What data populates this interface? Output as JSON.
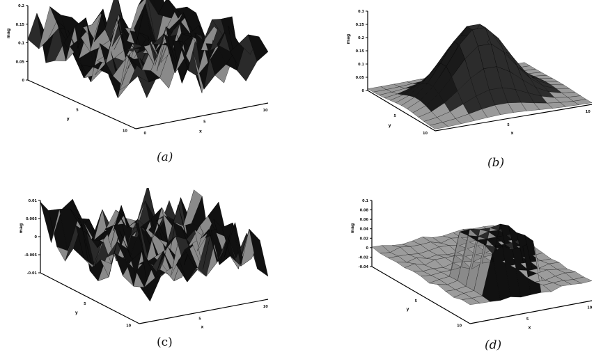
{
  "chart_data": [
    {
      "type": "surface",
      "caption": "(a)",
      "z_label": "mag",
      "x_label": "x",
      "y_label": "y",
      "z_ticks": [
        "0.2",
        "0.15",
        "0.1",
        "0.05",
        "0"
      ],
      "x_ticks": [
        "0",
        "5",
        "10"
      ],
      "y_ticks": [
        "5",
        "10"
      ],
      "zlim": [
        0,
        0.2
      ],
      "shape": "noisy-surface"
    },
    {
      "type": "surface",
      "caption": "(b)",
      "z_label": "mag",
      "x_label": "x",
      "y_label": "y",
      "z_ticks": [
        "0.3",
        "0.25",
        "0.2",
        "0.15",
        "0.1",
        "0.05",
        "0"
      ],
      "x_ticks": [
        "5",
        "10"
      ],
      "y_ticks": [
        "5",
        "10"
      ],
      "zlim": [
        0,
        0.3
      ],
      "shape": "smooth-gaussian-peak"
    },
    {
      "type": "surface",
      "caption": "(c)",
      "z_label": "mag",
      "x_label": "x",
      "y_label": "y",
      "z_ticks": [
        "0.01",
        "0.005",
        "0",
        "-0.005",
        "-0.01"
      ],
      "x_ticks": [
        "5",
        "10"
      ],
      "y_ticks": [
        "5",
        "10"
      ],
      "zlim": [
        -0.01,
        0.01
      ],
      "shape": "noisy-surface"
    },
    {
      "type": "surface",
      "caption": "(d)",
      "z_label": "mag",
      "x_label": "x",
      "y_label": "y",
      "z_ticks": [
        "0.1",
        "0.08",
        "0.06",
        "0.04",
        "0.02",
        "0",
        "-0.02",
        "-0.04"
      ],
      "x_ticks": [
        "5",
        "10"
      ],
      "y_ticks": [
        "5",
        "10"
      ],
      "zlim": [
        -0.04,
        0.1
      ],
      "shape": "raised-block"
    }
  ]
}
